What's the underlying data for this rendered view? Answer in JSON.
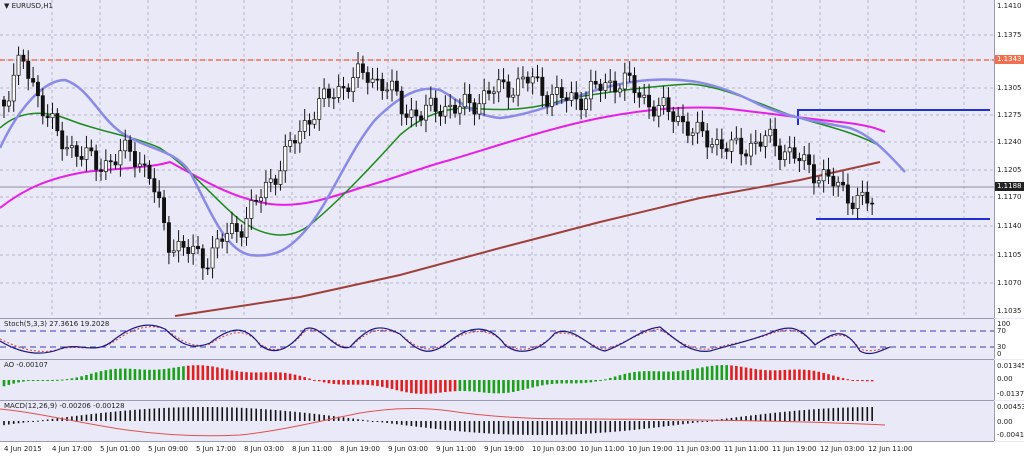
{
  "symbol": "EURUSD,H1",
  "symbol_icon": "dropdown-triangle-icon",
  "price_axis": [
    "1.1410",
    "1.1375",
    "1.1305",
    "1.1275",
    "1.1240",
    "1.1205",
    "1.1170",
    "1.1140",
    "1.1105",
    "1.1070",
    "1.1035"
  ],
  "price_tags": {
    "red_line": "1.1343",
    "current": "1.1188"
  },
  "stoch": {
    "label": "Stoch(5,3,3) 27.3616 19.2028",
    "levels": [
      "100",
      "70",
      "30",
      "0"
    ]
  },
  "ao": {
    "label": "AO -0.00107",
    "axis": [
      "0.01345",
      "0.00",
      "-0.01372"
    ]
  },
  "macd": {
    "label": "MACD(12,26,9) -0.00206 -0.00128",
    "axis": [
      "0.00453",
      "0.00",
      "-0.00413"
    ]
  },
  "time_axis": [
    "4 Jun 2015",
    "4 Jun 17:00",
    "5 Jun 01:00",
    "5 Jun 09:00",
    "5 Jun 17:00",
    "8 Jun 03:00",
    "8 Jun 11:00",
    "8 Jun 19:00",
    "9 Jun 03:00",
    "9 Jun 11:00",
    "9 Jun 19:00",
    "10 Jun 03:00",
    "10 Jun 11:00",
    "10 Jun 19:00",
    "11 Jun 03:00",
    "11 Jun 11:00",
    "11 Jun 19:00",
    "12 Jun 03:00",
    "12 Jun 11:00"
  ],
  "colors": {
    "background": "#e9e9f7",
    "blue_ma": "#8a8ae8",
    "green_ma": "#1c8a1c",
    "magenta_ma": "#e81ee8",
    "trendline": "#a0403a",
    "hline_blue": "#2030d0",
    "hline_red": "#f07050",
    "ao_up": "#1aa01a",
    "ao_down": "#e02020"
  }
}
